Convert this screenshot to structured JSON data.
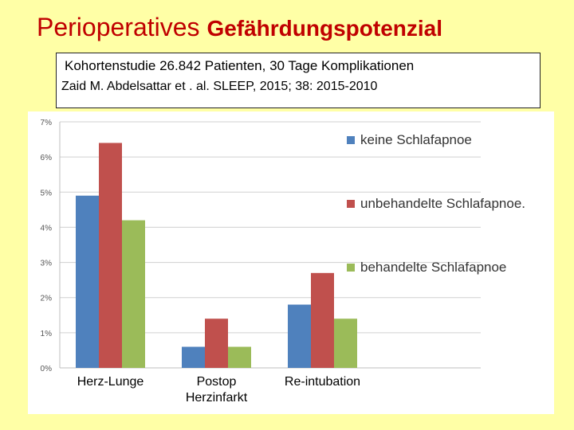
{
  "slide": {
    "title_main": "Perioperatives",
    "title_sub": "Gefährdungspotenzial",
    "citation_line1": "Kohortenstudie 26.842 Patienten, 30 Tage Komplikationen",
    "citation_line2": "Zaid M. Abdelsattar et . al. SLEEP, 2015; 38: 2015-2010"
  },
  "chart_data": {
    "type": "bar",
    "categories": [
      "Herz-Lunge",
      "Postop\nHerzinfarkt",
      "Re-intubation"
    ],
    "series": [
      {
        "name": "keine Schlafapnoe",
        "values": [
          4.9,
          0.6,
          1.8
        ],
        "color": "#4F81BD"
      },
      {
        "name": "unbehandelte Schlafapnoe.",
        "values": [
          6.4,
          1.4,
          2.7
        ],
        "color": "#C0504D"
      },
      {
        "name": "behandelte Schlafapnoe",
        "values": [
          4.2,
          0.6,
          1.4
        ],
        "color": "#9BBB59"
      }
    ],
    "ylim": [
      0,
      7
    ],
    "yticks": [
      "0%",
      "1%",
      "2%",
      "3%",
      "4%",
      "5%",
      "6%",
      "7%"
    ],
    "grid": true,
    "legend_position": "right"
  }
}
